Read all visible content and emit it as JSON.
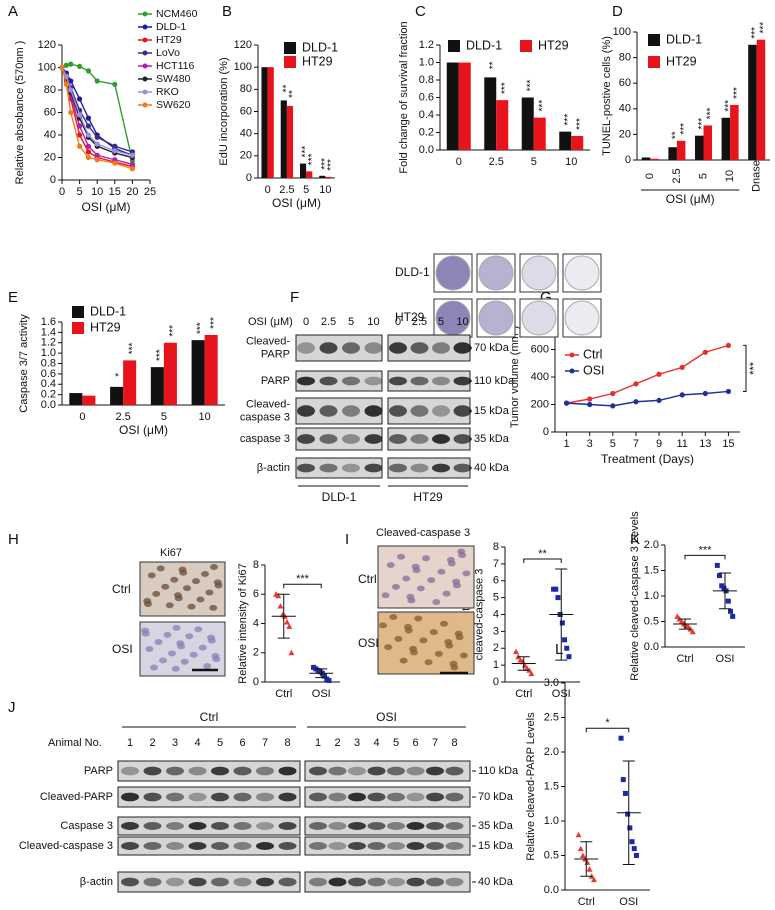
{
  "chart_data": [
    {
      "type": "line",
      "panel": "A",
      "ylabel": "Relative absobance (570nm )",
      "xlabel": "OSI (μM)",
      "x": [
        0,
        1.25,
        2.5,
        5,
        7.5,
        10,
        15,
        20
      ],
      "xlim": [
        0,
        25
      ],
      "xticks": [
        0,
        5,
        10,
        15,
        20,
        25
      ],
      "ylim": [
        0,
        120
      ],
      "yticks": [
        0,
        20,
        40,
        60,
        80,
        100,
        120
      ],
      "legend": "outside right",
      "series": [
        {
          "name": "NCM460",
          "color": "#2ca02c",
          "values": [
            100,
            102,
            103,
            101,
            97,
            88,
            85,
            17
          ]
        },
        {
          "name": "DLD-1",
          "color": "#1a1aa6",
          "values": [
            100,
            95,
            88,
            72,
            55,
            40,
            28,
            22
          ]
        },
        {
          "name": "HT29",
          "color": "#e8141b",
          "values": [
            100,
            88,
            72,
            40,
            25,
            20,
            16,
            12
          ]
        },
        {
          "name": "LoVo",
          "color": "#3b2a8c",
          "values": [
            100,
            93,
            82,
            62,
            48,
            38,
            30,
            25
          ]
        },
        {
          "name": "HCT116",
          "color": "#b01fb0",
          "values": [
            100,
            90,
            75,
            48,
            30,
            22,
            18,
            14
          ]
        },
        {
          "name": "SW480",
          "color": "#222222",
          "values": [
            100,
            90,
            78,
            55,
            38,
            30,
            24,
            20
          ]
        },
        {
          "name": "RKO",
          "color": "#9a8fe0",
          "values": [
            100,
            92,
            80,
            58,
            40,
            32,
            26,
            22
          ]
        },
        {
          "name": "SW620",
          "color": "#f07a1a",
          "values": [
            100,
            85,
            60,
            30,
            20,
            18,
            15,
            10
          ]
        }
      ]
    },
    {
      "type": "bar",
      "panel": "B",
      "ylabel": "EdU incorporation (%)",
      "xlabel": "OSI (μM)",
      "categories": [
        "0",
        "2.5",
        "5",
        "10"
      ],
      "ylim": [
        0,
        120
      ],
      "yticks": [
        0,
        20,
        40,
        60,
        80,
        100,
        120
      ],
      "legend": "upper right",
      "series": [
        {
          "name": "DLD-1",
          "color": "#111111",
          "values": [
            100,
            70,
            13,
            2
          ],
          "significance": [
            null,
            "**",
            "***",
            "***"
          ]
        },
        {
          "name": "HT29",
          "color": "#e8141b",
          "values": [
            100,
            65,
            6,
            1
          ],
          "significance": [
            null,
            "**",
            "***",
            "***"
          ]
        }
      ]
    },
    {
      "type": "bar",
      "panel": "C",
      "ylabel": "Fold change of survival fraction",
      "categories": [
        "0",
        "2.5",
        "5",
        "10"
      ],
      "ylim": [
        0,
        1.2
      ],
      "yticks": [
        {
          "value": 0,
          "label": "0.0"
        },
        0.2,
        0.4,
        0.6,
        0.8,
        {
          "value": 1,
          "label": "1.0"
        },
        1.2
      ],
      "legend": "top",
      "series": [
        {
          "name": "DLD-1",
          "color": "#111111",
          "values": [
            1.0,
            0.83,
            0.6,
            0.21
          ],
          "significance": [
            null,
            "**",
            "***",
            "***"
          ]
        },
        {
          "name": "HT29",
          "color": "#e8141b",
          "values": [
            1.0,
            0.57,
            0.37,
            0.16
          ],
          "significance": [
            null,
            "***",
            "***",
            "***"
          ]
        }
      ]
    },
    {
      "type": "bar",
      "panel": "D",
      "ylabel": "TUNEL-postive cells (%)",
      "xlabel": "OSI (μM)",
      "rotated_labels": true,
      "categories": [
        "0",
        "2.5",
        "5",
        "10",
        "Dnase"
      ],
      "ylim": [
        0,
        100
      ],
      "yticks": [
        0,
        20,
        40,
        60,
        80,
        100
      ],
      "legend": "upper left",
      "series": [
        {
          "name": "DLD-1",
          "color": "#111111",
          "values": [
            2,
            10,
            19,
            33,
            90
          ],
          "significance": [
            null,
            "**",
            "***",
            "***",
            "***"
          ]
        },
        {
          "name": "HT29",
          "color": "#e8141b",
          "values": [
            1,
            15,
            27,
            43,
            94
          ],
          "significance": [
            null,
            "***",
            "***",
            "***",
            "***"
          ]
        }
      ]
    },
    {
      "type": "bar",
      "panel": "E",
      "ylabel": "Caspase 3/7 activity",
      "xlabel": "OSI (μM)",
      "categories": [
        "0",
        "2.5",
        "5",
        "10"
      ],
      "ylim": [
        0,
        1.6
      ],
      "yticks": [
        {
          "value": 0,
          "label": "0.0"
        },
        0.2,
        0.4,
        0.6,
        0.8,
        {
          "value": 1,
          "label": "1.0"
        },
        1.2,
        1.4,
        1.6
      ],
      "legend": "upper left",
      "series": [
        {
          "name": "DLD-1",
          "color": "#111111",
          "values": [
            0.23,
            0.35,
            0.73,
            1.25
          ],
          "significance": [
            null,
            "*",
            "***",
            "***"
          ]
        },
        {
          "name": "HT29",
          "color": "#e8141b",
          "values": [
            0.18,
            0.86,
            1.2,
            1.35
          ],
          "significance": [
            null,
            "***",
            "***",
            "***"
          ]
        }
      ]
    },
    {
      "type": "line",
      "panel": "G",
      "ylabel": "Tumor volume (mm³)",
      "xlabel": "Treatment (Days)",
      "annotation": "***",
      "x": [
        1,
        3,
        5,
        7,
        9,
        11,
        13,
        15
      ],
      "xlim": [
        0,
        16
      ],
      "xticks": [
        1,
        3,
        5,
        7,
        9,
        11,
        13,
        15
      ],
      "ylim": [
        0,
        800
      ],
      "yticks": [
        0,
        200,
        400,
        600,
        800
      ],
      "legend": "upper left",
      "series": [
        {
          "name": "Ctrl",
          "color": "#e5302a",
          "values": [
            210,
            240,
            280,
            350,
            420,
            470,
            580,
            630
          ]
        },
        {
          "name": "OSI",
          "color": "#1f2f9c",
          "values": [
            210,
            200,
            190,
            220,
            230,
            270,
            280,
            295
          ]
        }
      ]
    },
    {
      "type": "strip",
      "panel": "H",
      "ylabel": "Relative intensity of Ki67",
      "annotation": "***",
      "categories": [
        "Ctrl",
        "OSI"
      ],
      "colors": [
        "#e53935",
        "#1a2aa0"
      ],
      "ylim": [
        0,
        8
      ],
      "yticks": [
        0,
        2,
        4,
        6,
        8
      ],
      "values": [
        [
          6.0,
          5.9,
          5.2,
          4.6,
          4.5,
          4.1,
          3.8,
          2.0
        ],
        [
          1.0,
          0.9,
          0.8,
          0.7,
          0.6,
          0.4,
          0.2,
          0.1
        ]
      ],
      "mean": [
        4.5,
        0.6
      ],
      "sd": [
        1.5,
        0.3
      ]
    },
    {
      "type": "strip",
      "panel": "I",
      "ylabel": "Relative intensity of\ncleaved-caspase 3",
      "annotation": "**",
      "categories": [
        "Ctrl",
        "OSI"
      ],
      "colors": [
        "#e53935",
        "#1a2aa0"
      ],
      "ylim": [
        0,
        8
      ],
      "yticks": [
        0,
        1,
        2,
        3,
        4,
        5,
        6,
        7,
        8
      ],
      "values": [
        [
          1.8,
          1.5,
          1.3,
          1.2,
          1.0,
          0.8,
          0.7,
          0.5
        ],
        [
          5.5,
          5.5,
          5.0,
          4.0,
          3.5,
          2.5,
          2.0,
          1.5
        ]
      ],
      "mean": [
        1.1,
        4.0
      ],
      "sd": [
        0.4,
        2.7
      ]
    },
    {
      "type": "strip",
      "panel": "K",
      "ylabel": "Relative cleaved-caspase 3 Levels",
      "annotation": "***",
      "categories": [
        "Ctrl",
        "OSI"
      ],
      "colors": [
        "#e53935",
        "#1a2aa0"
      ],
      "ylim": [
        0,
        2
      ],
      "yticks": [
        {
          "value": 0,
          "label": "0.0"
        },
        0.5,
        {
          "value": 1,
          "label": "1.0"
        },
        1.5,
        {
          "value": 2,
          "label": "2.0"
        }
      ],
      "values": [
        [
          0.6,
          0.55,
          0.5,
          0.45,
          0.42,
          0.4,
          0.35,
          0.3
        ],
        [
          1.6,
          1.4,
          1.2,
          1.15,
          1.1,
          0.9,
          0.7,
          0.6
        ]
      ],
      "mean": [
        0.45,
        1.1
      ],
      "sd": [
        0.1,
        0.35
      ]
    },
    {
      "type": "strip",
      "panel": "L",
      "ylabel": "Relative cleaved-PARP Levels",
      "annotation": "*",
      "categories": [
        "Ctrl",
        "OSI"
      ],
      "colors": [
        "#e53935",
        "#1a2aa0"
      ],
      "ylim": [
        0,
        3
      ],
      "yticks": [
        {
          "value": 0,
          "label": "0.0"
        },
        0.5,
        {
          "value": 1,
          "label": "1.0"
        },
        1.5,
        {
          "value": 2,
          "label": "2.0"
        },
        2.5,
        {
          "value": 3,
          "label": "3.0"
        }
      ],
      "values": [
        [
          0.8,
          0.6,
          0.5,
          0.45,
          0.4,
          0.3,
          0.2,
          0.15
        ],
        [
          2.2,
          1.6,
          1.4,
          1.1,
          0.9,
          0.7,
          0.6,
          0.5
        ]
      ],
      "mean": [
        0.45,
        1.12
      ],
      "sd": [
        0.25,
        0.75
      ]
    }
  ],
  "figure": {
    "C_images": {
      "rows": [
        "DLD-1",
        "HT29"
      ]
    },
    "H_images": {
      "title": "Ki67",
      "rows": [
        "Ctrl",
        "OSI"
      ]
    },
    "I_images": {
      "title": "Cleaved-caspase 3",
      "rows": [
        "Ctrl",
        "OSI"
      ]
    },
    "F": {
      "panel": "F",
      "header": "OSI (μM)",
      "lanes": [
        "0",
        "2.5",
        "5",
        "10",
        "0",
        "2.5",
        "5",
        "10"
      ],
      "rows": [
        "Cleaved-\nPARP",
        "PARP",
        "Cleaved-\ncaspase 3",
        "caspase 3",
        "β-actin"
      ],
      "sizes": [
        "70 kDa",
        "110 kDa",
        "15 kDa",
        "35 kDa",
        "40 kDa"
      ],
      "groups": [
        "DLD-1",
        "HT29"
      ]
    },
    "J": {
      "panel": "J",
      "header": "Animal No.",
      "groups": [
        "Ctrl",
        "OSI"
      ],
      "lanes": [
        "1",
        "2",
        "3",
        "4",
        "5",
        "6",
        "7",
        "8",
        "1",
        "2",
        "3",
        "4",
        "5",
        "6",
        "7",
        "8"
      ],
      "rows": [
        "PARP",
        "Cleaved-PARP",
        "Caspase 3",
        "Cleaved-caspase 3",
        "β-actin"
      ],
      "sizes": [
        "110 kDa",
        "70 kDa",
        "35 kDa",
        "15 kDa",
        "40 kDa"
      ]
    }
  }
}
